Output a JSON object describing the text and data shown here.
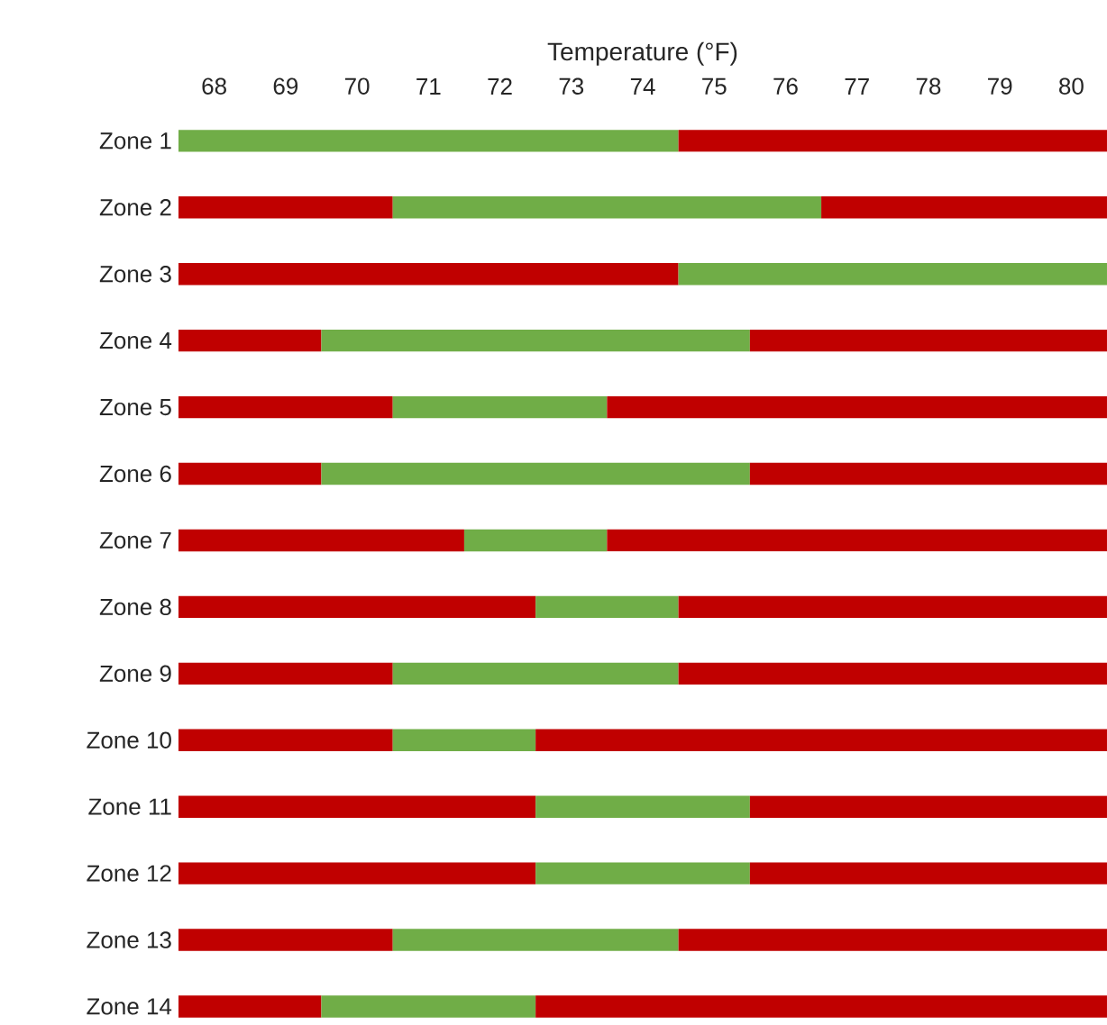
{
  "chart_data": {
    "type": "bar",
    "orientation": "horizontal",
    "xlabel": "Temperature (°F)",
    "categories": [
      "Zone 1",
      "Zone 2",
      "Zone 3",
      "Zone 4",
      "Zone 5",
      "Zone 6",
      "Zone 7",
      "Zone 8",
      "Zone 9",
      "Zone 10",
      "Zone 11",
      "Zone 12",
      "Zone 13",
      "Zone 14"
    ],
    "series": [
      {
        "base": [
          67.5,
          67.5,
          67.5,
          67.5,
          67.5,
          67.5,
          67.5,
          67.5,
          67.5,
          67.5,
          67.5,
          67.5,
          67.5,
          67.5
        ],
        "values": [
          7,
          3,
          7,
          2,
          3,
          2,
          4,
          5,
          3,
          3,
          5,
          5,
          3,
          2
        ],
        "colors": [
          "#70ad47",
          "#c00000",
          "#c00000",
          "#c00000",
          "#c00000",
          "#c00000",
          "#c00000",
          "#c00000",
          "#c00000",
          "#c00000",
          "#c00000",
          "#c00000",
          "#c00000",
          "#c00000"
        ]
      },
      {
        "base": [
          74.5,
          70.5,
          74.5,
          69.5,
          70.5,
          69.5,
          71.5,
          72.5,
          70.5,
          70.5,
          72.5,
          72.5,
          70.5,
          69.5
        ],
        "values": [
          6,
          6,
          6,
          6,
          3,
          6,
          2,
          2,
          4,
          2,
          3,
          3,
          4,
          3
        ],
        "colors": [
          "#c00000",
          "#70ad47",
          "#70ad47",
          "#70ad47",
          "#70ad47",
          "#70ad47",
          "#70ad47",
          "#70ad47",
          "#70ad47",
          "#70ad47",
          "#70ad47",
          "#70ad47",
          "#70ad47",
          "#70ad47"
        ]
      },
      {
        "base": [
          null,
          76.5,
          null,
          75.5,
          73.5,
          75.5,
          73.5,
          74.5,
          74.5,
          72.5,
          75.5,
          75.5,
          74.5,
          72.5
        ],
        "values": [
          null,
          4,
          null,
          5,
          7,
          5,
          7,
          6,
          6,
          8,
          5,
          5,
          6,
          8
        ],
        "colors": [
          "#c00000",
          "#c00000",
          "#c00000",
          "#c00000",
          "#c00000",
          "#c00000",
          "#c00000",
          "#c00000",
          "#c00000",
          "#c00000",
          "#c00000",
          "#c00000",
          "#c00000",
          "#c00000"
        ]
      }
    ],
    "xlim": [
      67.5,
      80.5
    ],
    "xticks": [
      68,
      69,
      70,
      71,
      72,
      73,
      74,
      75,
      76,
      77,
      78,
      79,
      80
    ]
  }
}
